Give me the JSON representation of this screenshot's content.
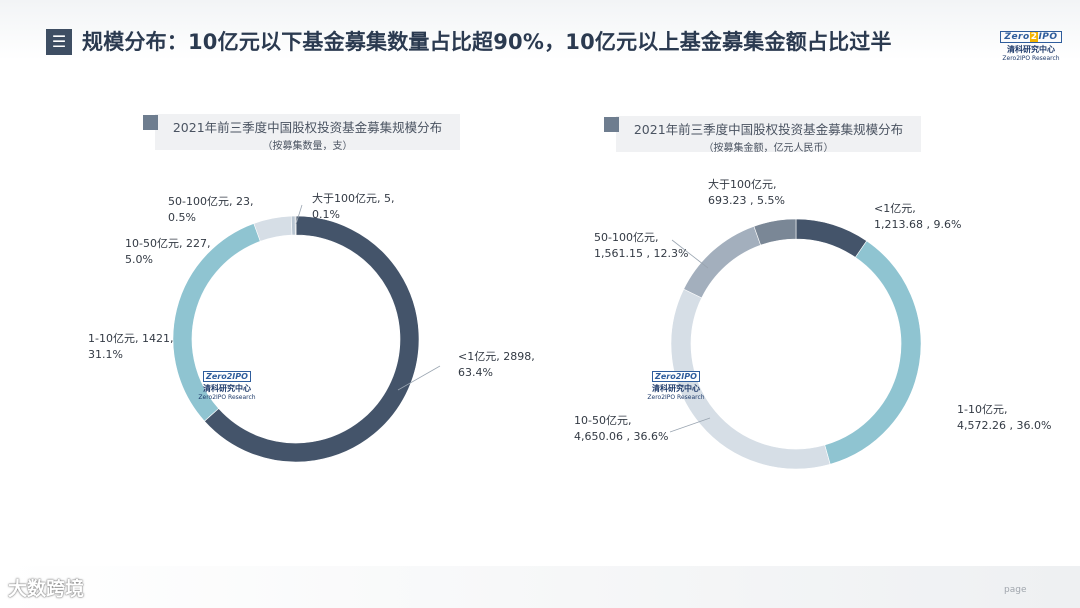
{
  "header": {
    "icon": "menu-icon",
    "title": "规模分布：10亿元以下基金募集数量占比超90%，10亿元以上基金募集金额占比过半"
  },
  "logo": {
    "box_text_a": "Zero",
    "box_text_b": "2",
    "box_text_c": "IPO",
    "cn": "清科研究中心",
    "en": "Zero2IPO Research"
  },
  "footer": {
    "page_label": "page",
    "watermark": "大数跨境"
  },
  "colors": {
    "dark": "#44546a",
    "teal": "#8fc4d1",
    "light": "#d6dee6",
    "grey": "#b9c5d1",
    "mid": "#a3afbd",
    "darkgrey": "#7a8796"
  },
  "chart_data": [
    {
      "type": "pie",
      "title": "2021年前三季度中国股权投资基金募集规模分布",
      "subtitle": "（按募集数量，支）",
      "categories": [
        "<1亿元",
        "1-10亿元",
        "10-50亿元",
        "50-100亿元",
        "大于100亿元"
      ],
      "values": [
        2898,
        1421,
        227,
        23,
        5
      ],
      "percent": [
        63.4,
        31.1,
        5.0,
        0.5,
        0.1
      ],
      "labels": [
        [
          "<1亿元, 2898,",
          "63.4%"
        ],
        [
          "1-10亿元, 1421,",
          "31.1%"
        ],
        [
          "10-50亿元, 227,",
          "5.0%"
        ],
        [
          "50-100亿元, 23,",
          "0.5%"
        ],
        [
          "大于100亿元, 5,",
          "0.1%"
        ]
      ],
      "colors": [
        "#44546a",
        "#8fc4d1",
        "#d6dee6",
        "#b9c5d1",
        "#7a8796"
      ]
    },
    {
      "type": "pie",
      "title": "2021年前三季度中国股权投资基金募集规模分布",
      "subtitle": "（按募集金额，亿元人民币）",
      "categories": [
        "<1亿元",
        "1-10亿元",
        "10-50亿元",
        "50-100亿元",
        "大于100亿元"
      ],
      "values": [
        1213.68,
        4572.26,
        4650.06,
        1561.15,
        693.23
      ],
      "percent": [
        9.6,
        36.0,
        36.6,
        12.3,
        5.5
      ],
      "labels": [
        [
          "<1亿元,",
          "1,213.68 , 9.6%"
        ],
        [
          "1-10亿元,",
          "4,572.26 , 36.0%"
        ],
        [
          "10-50亿元,",
          "4,650.06 , 36.6%"
        ],
        [
          "50-100亿元,",
          "1,561.15 , 12.3%"
        ],
        [
          "大于100亿元,",
          "693.23 , 5.5%"
        ]
      ],
      "colors": [
        "#44546a",
        "#8fc4d1",
        "#d6dee6",
        "#a3afbd",
        "#7a8796"
      ]
    }
  ]
}
